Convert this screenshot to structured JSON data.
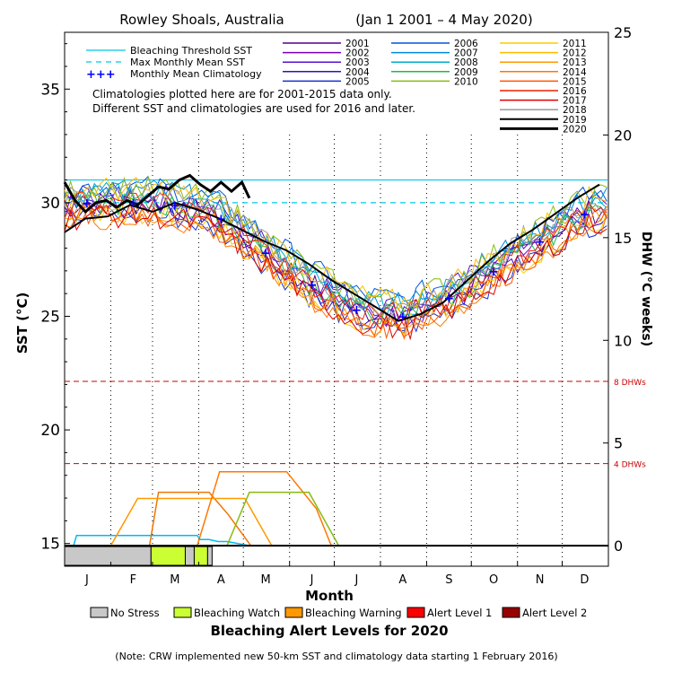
{
  "chart_data": {
    "type": "line",
    "title_location": "Rowley Shoals, Australia",
    "title_range": "(Jan 1 2001 – 4 May 2020)",
    "xlabel": "Month",
    "ylabel_left": "SST (°C)",
    "ylabel_right": "DHW (°C weeks)",
    "months": [
      "J",
      "F",
      "M",
      "A",
      "M",
      "J",
      "J",
      "A",
      "S",
      "O",
      "N",
      "D"
    ],
    "ylim_left": [
      14,
      37.5
    ],
    "yticks_left": [
      15,
      20,
      25,
      30,
      35
    ],
    "ylim_right": [
      -1,
      25
    ],
    "yticks_right": [
      0,
      5,
      10,
      15,
      20,
      25
    ],
    "grid": "vertical dotted month lines",
    "legend_placement": "top",
    "reference_lines": {
      "bleaching_threshold": {
        "label": "Bleaching Threshold SST",
        "value": 31.0,
        "color": "#00c8e6"
      },
      "max_monthly_mean": {
        "label": "Max Monthly Mean SST",
        "value": 30.0,
        "color": "#00c8e6"
      },
      "monthly_mean_climatology": {
        "label": "Monthly Mean Climatology",
        "color": "#0000ff"
      }
    },
    "climatology": {
      "months": [
        1,
        2,
        3,
        4,
        5,
        6,
        7,
        8,
        9,
        10,
        11,
        12
      ],
      "values": [
        30.0,
        30.0,
        29.9,
        29.3,
        27.8,
        26.4,
        25.3,
        25.0,
        25.8,
        27.0,
        28.3,
        29.5
      ]
    },
    "dhw_lines": [
      {
        "label": "8 DHWs",
        "value": 8,
        "color": "#cc0000"
      },
      {
        "label": "4 DHWs",
        "value": 4,
        "color": "#cc0000"
      }
    ],
    "note_lines": [
      "Climatologies plotted here are for 2001-2015 data only.",
      "Different SST and climatologies are used for 2016 and later."
    ],
    "series": [
      {
        "name": "2001",
        "color": "#550088"
      },
      {
        "name": "2002",
        "color": "#7700bb"
      },
      {
        "name": "2003",
        "color": "#5511cc"
      },
      {
        "name": "2004",
        "color": "#3311bb"
      },
      {
        "name": "2005",
        "color": "#1133cc"
      },
      {
        "name": "2006",
        "color": "#0055dd"
      },
      {
        "name": "2007",
        "color": "#0088dd"
      },
      {
        "name": "2008",
        "color": "#00aacc"
      },
      {
        "name": "2009",
        "color": "#22bb44"
      },
      {
        "name": "2010",
        "color": "#88bb11"
      },
      {
        "name": "2011",
        "color": "#ffcc00"
      },
      {
        "name": "2012",
        "color": "#ffbb00"
      },
      {
        "name": "2013",
        "color": "#ff9900"
      },
      {
        "name": "2014",
        "color": "#ff7700"
      },
      {
        "name": "2015",
        "color": "#ff5500"
      },
      {
        "name": "2016",
        "color": "#ee2200"
      },
      {
        "name": "2017",
        "color": "#dd0000"
      },
      {
        "name": "2018",
        "color": "#999999"
      },
      {
        "name": "2019",
        "color": "#000000"
      },
      {
        "name": "2020",
        "color": "#000000"
      }
    ],
    "sst_2020": {
      "day": [
        1,
        8,
        15,
        22,
        29,
        36,
        43,
        50,
        57,
        64,
        71,
        78,
        85,
        92,
        99,
        106,
        113,
        120,
        125
      ],
      "value": [
        30.9,
        30.1,
        29.6,
        30.0,
        30.1,
        29.8,
        30.1,
        29.9,
        30.3,
        30.7,
        30.6,
        31.0,
        31.2,
        30.8,
        30.5,
        30.9,
        30.5,
        30.9,
        30.2
      ]
    },
    "sst_2019": {
      "day": [
        1,
        15,
        30,
        45,
        60,
        75,
        90,
        105,
        120,
        135,
        150,
        165,
        180,
        195,
        210,
        225,
        240,
        255,
        270,
        285,
        300,
        315,
        330,
        345,
        360
      ],
      "value": [
        28.7,
        29.3,
        29.4,
        29.9,
        29.6,
        30.0,
        29.7,
        29.3,
        28.8,
        28.3,
        27.9,
        27.3,
        26.6,
        26.0,
        25.4,
        24.8,
        25.1,
        25.6,
        26.5,
        27.4,
        28.2,
        28.8,
        29.5,
        30.2,
        30.8
      ]
    },
    "dhw_2016": {
      "day": [
        58,
        64,
        98,
        111,
        126
      ],
      "value": [
        0,
        2.6,
        2.6,
        1.5,
        0
      ]
    },
    "dhw_2020": {
      "day": [
        7,
        9,
        31,
        60,
        90,
        92,
        98,
        104,
        110,
        125
      ],
      "value": [
        0,
        0.5,
        0.5,
        0.5,
        0.5,
        0.3,
        0.3,
        0.2,
        0.2,
        0.0
      ]
    },
    "dhw_lines_years": [
      {
        "name": "2013",
        "day": [
          32,
          50,
          77,
          115,
          121,
          122,
          140,
          146
        ],
        "value": [
          0,
          2.3,
          2.3,
          2.3,
          2.3,
          2.3,
          0,
          0
        ]
      },
      {
        "name": "2014",
        "day": [
          90,
          105,
          120,
          150,
          170,
          180
        ],
        "value": [
          0,
          3.6,
          3.6,
          3.6,
          1.8,
          0
        ]
      },
      {
        "name": "2010",
        "day": [
          110,
          125,
          150,
          165,
          185
        ],
        "value": [
          0,
          2.6,
          2.6,
          2.6,
          0
        ]
      }
    ],
    "xaxis_title": "Month",
    "alert_title": "Bleaching Alert Levels for 2020",
    "alert_legend": [
      {
        "label": "No Stress",
        "color": "#c8c8c8"
      },
      {
        "label": "Bleaching Watch",
        "color": "#ccff33"
      },
      {
        "label": "Bleaching Warning",
        "color": "#ff9900"
      },
      {
        "label": "Alert Level 1",
        "color": "#ff0000"
      },
      {
        "label": "Alert Level 2",
        "color": "#990000"
      }
    ],
    "alert_bar_2020": [
      {
        "from": 1,
        "to": 59,
        "level": "No Stress"
      },
      {
        "from": 59,
        "to": 82,
        "level": "Bleaching Watch"
      },
      {
        "from": 82,
        "to": 88,
        "level": "No Stress"
      },
      {
        "from": 88,
        "to": 97,
        "level": "Bleaching Watch"
      },
      {
        "from": 97,
        "to": 100,
        "level": "No Stress"
      }
    ],
    "footnote": "(Note: CRW implemented new 50-km SST and climatology data starting 1 February 2016)"
  }
}
